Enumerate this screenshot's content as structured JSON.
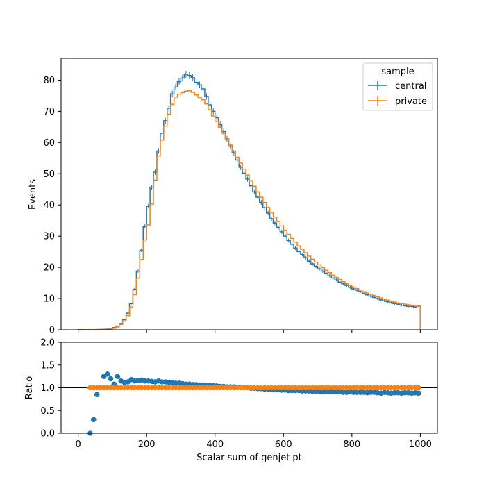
{
  "chart_data": {
    "type": "histogram-with-ratio",
    "legend": {
      "title": "sample",
      "placement": "upper-right",
      "entries": [
        "central",
        "private"
      ]
    },
    "colors": {
      "central": "#1f77b4",
      "private": "#ff7f0e",
      "reference_line": "#000000"
    },
    "xlabel": "Scalar sum of genjet pt",
    "x_ticks": [
      "0",
      "200",
      "400",
      "600",
      "800",
      "1000"
    ],
    "xlim": [
      -50,
      1050
    ],
    "bins": {
      "start": 0,
      "width": 10,
      "count": 100
    },
    "top_panel": {
      "ylabel": "Events",
      "ylim": [
        0,
        87
      ],
      "y_ticks": [
        "0",
        "10",
        "20",
        "30",
        "40",
        "50",
        "60",
        "70",
        "80"
      ],
      "grid": false,
      "series": [
        {
          "name": "central",
          "style": "step-histogram-with-error-bars",
          "values": [
            0.05,
            0.05,
            0.05,
            0.06,
            0.07,
            0.08,
            0.1,
            0.14,
            0.22,
            0.39,
            0.7,
            1.2,
            2.0,
            3.3,
            5.3,
            8.4,
            13.0,
            18.8,
            25.5,
            33.1,
            39.6,
            45.7,
            50.5,
            57.3,
            63.0,
            67.0,
            71.0,
            75.6,
            77.8,
            79.5,
            80.7,
            81.9,
            81.5,
            80.8,
            79.3,
            78.5,
            77.2,
            74.8,
            72.1,
            70.0,
            68.0,
            65.8,
            63.5,
            61.2,
            58.8,
            56.7,
            54.4,
            52.1,
            50.2,
            48.3,
            46.1,
            44.2,
            42.5,
            40.8,
            39.1,
            37.4,
            35.6,
            34.2,
            32.8,
            31.4,
            30.0,
            28.6,
            27.4,
            26.2,
            25.1,
            24.1,
            23.1,
            22.0,
            21.1,
            20.3,
            19.5,
            18.8,
            18.1,
            17.3,
            16.6,
            16.0,
            15.3,
            14.7,
            14.2,
            13.6,
            13.1,
            12.7,
            12.2,
            11.7,
            11.2,
            10.8,
            10.4,
            10.0,
            9.6,
            9.3,
            9.0,
            8.7,
            8.4,
            8.2,
            7.9,
            7.7,
            7.5,
            7.5,
            7.3,
            7.6
          ]
        },
        {
          "name": "private",
          "style": "step-histogram",
          "values": [
            0,
            0,
            0.05,
            0.05,
            0.05,
            0.07,
            0.08,
            0.1,
            0.15,
            0.25,
            0.5,
            0.9,
            1.7,
            2.9,
            4.6,
            7.3,
            11.3,
            16.6,
            22.5,
            28.8,
            33.6,
            40.3,
            48.0,
            55.7,
            60.8,
            65.3,
            69.1,
            72.3,
            74.6,
            75.5,
            76.0,
            76.5,
            76.6,
            76.1,
            75.3,
            74.5,
            73.7,
            72.4,
            70.5,
            68.5,
            66.8,
            64.9,
            63.0,
            61.2,
            59.2,
            57.2,
            55.3,
            53.4,
            51.5,
            49.6,
            47.8,
            46.0,
            44.2,
            42.5,
            40.8,
            39.2,
            37.6,
            36.1,
            34.7,
            33.3,
            31.9,
            30.6,
            29.3,
            28.1,
            26.9,
            25.8,
            24.7,
            23.6,
            22.6,
            21.7,
            20.8,
            19.9,
            19.1,
            18.3,
            17.5,
            16.8,
            16.1,
            15.4,
            14.8,
            14.2,
            13.7,
            13.2,
            12.7,
            12.2,
            11.8,
            11.4,
            11.0,
            10.6,
            10.2,
            9.8,
            9.5,
            9.2,
            8.9,
            8.6,
            8.4,
            8.2,
            8.0,
            7.9,
            7.8,
            7.6
          ]
        }
      ]
    },
    "ratio_panel": {
      "ylabel": "Ratio",
      "ylim": [
        0.0,
        2.0
      ],
      "y_ticks": [
        "0.0",
        "0.5",
        "1.0",
        "1.5",
        "2.0"
      ],
      "reference_line": 1.0,
      "grid": false,
      "series": [
        {
          "name": "central",
          "style": "points",
          "x": [
            35,
            45,
            55,
            65,
            75,
            85,
            95,
            105,
            115,
            125,
            135,
            145,
            155,
            165,
            175,
            185,
            195,
            205,
            215,
            225,
            235,
            245,
            255,
            265,
            275,
            285,
            295,
            305,
            315,
            325,
            335,
            345,
            355,
            365,
            375,
            385,
            395,
            405,
            415,
            425,
            435,
            445,
            455,
            465,
            475,
            485,
            495,
            505,
            515,
            525,
            535,
            545,
            555,
            565,
            575,
            585,
            595,
            605,
            615,
            625,
            635,
            645,
            655,
            665,
            675,
            685,
            695,
            705,
            715,
            725,
            735,
            745,
            755,
            765,
            775,
            785,
            795,
            805,
            815,
            825,
            835,
            845,
            855,
            865,
            875,
            885,
            895,
            905,
            915,
            925,
            935,
            945,
            955,
            965,
            975,
            985,
            995
          ],
          "values": [
            0.0,
            0.3,
            0.85,
            1.0,
            1.25,
            1.3,
            1.2,
            1.08,
            1.25,
            1.15,
            1.12,
            1.13,
            1.18,
            1.15,
            1.16,
            1.17,
            1.15,
            1.15,
            1.14,
            1.13,
            1.15,
            1.13,
            1.13,
            1.11,
            1.12,
            1.1,
            1.1,
            1.09,
            1.08,
            1.08,
            1.07,
            1.07,
            1.06,
            1.06,
            1.05,
            1.05,
            1.05,
            1.04,
            1.03,
            1.03,
            1.02,
            1.02,
            1.02,
            1.01,
            1.01,
            1.0,
            1.0,
            0.99,
            0.99,
            0.98,
            0.98,
            0.97,
            0.97,
            0.96,
            0.96,
            0.96,
            0.95,
            0.95,
            0.94,
            0.94,
            0.94,
            0.94,
            0.93,
            0.93,
            0.93,
            0.92,
            0.92,
            0.92,
            0.91,
            0.92,
            0.91,
            0.91,
            0.91,
            0.91,
            0.9,
            0.9,
            0.91,
            0.9,
            0.9,
            0.9,
            0.9,
            0.89,
            0.9,
            0.9,
            0.89,
            0.88,
            0.9,
            0.89,
            0.88,
            0.89,
            0.89,
            0.88,
            0.89,
            0.89,
            0.88,
            0.89,
            0.88
          ]
        },
        {
          "name": "private",
          "style": "points",
          "x_start": 35,
          "x_step": 10,
          "count": 97,
          "value": 1.0
        }
      ]
    }
  }
}
